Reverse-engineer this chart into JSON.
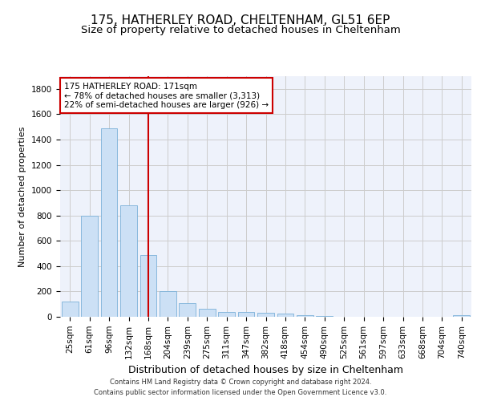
{
  "title_line1": "175, HATHERLEY ROAD, CHELTENHAM, GL51 6EP",
  "title_line2": "Size of property relative to detached houses in Cheltenham",
  "xlabel": "Distribution of detached houses by size in Cheltenham",
  "ylabel": "Number of detached properties",
  "footer_line1": "Contains HM Land Registry data © Crown copyright and database right 2024.",
  "footer_line2": "Contains public sector information licensed under the Open Government Licence v3.0.",
  "categories": [
    "25sqm",
    "61sqm",
    "96sqm",
    "132sqm",
    "168sqm",
    "204sqm",
    "239sqm",
    "275sqm",
    "311sqm",
    "347sqm",
    "382sqm",
    "418sqm",
    "454sqm",
    "490sqm",
    "525sqm",
    "561sqm",
    "597sqm",
    "633sqm",
    "668sqm",
    "704sqm",
    "740sqm"
  ],
  "values": [
    120,
    800,
    1490,
    880,
    490,
    205,
    105,
    65,
    40,
    35,
    30,
    25,
    10,
    5,
    3,
    2,
    2,
    1,
    1,
    1,
    15
  ],
  "bar_color": "#cce0f5",
  "bar_edge_color": "#7ab0d8",
  "vline_x_index": 4,
  "vline_color": "#cc0000",
  "annotation_text": "175 HATHERLEY ROAD: 171sqm\n← 78% of detached houses are smaller (3,313)\n22% of semi-detached houses are larger (926) →",
  "annotation_box_color": "#ffffff",
  "annotation_box_edge": "#cc0000",
  "ylim": [
    0,
    1900
  ],
  "yticks": [
    0,
    200,
    400,
    600,
    800,
    1000,
    1200,
    1400,
    1600,
    1800
  ],
  "grid_color": "#cccccc",
  "bg_color": "#eef2fb",
  "title_fontsize": 11,
  "subtitle_fontsize": 9.5,
  "ylabel_fontsize": 8,
  "xlabel_fontsize": 9,
  "tick_fontsize": 7.5,
  "annotation_fontsize": 7.5
}
